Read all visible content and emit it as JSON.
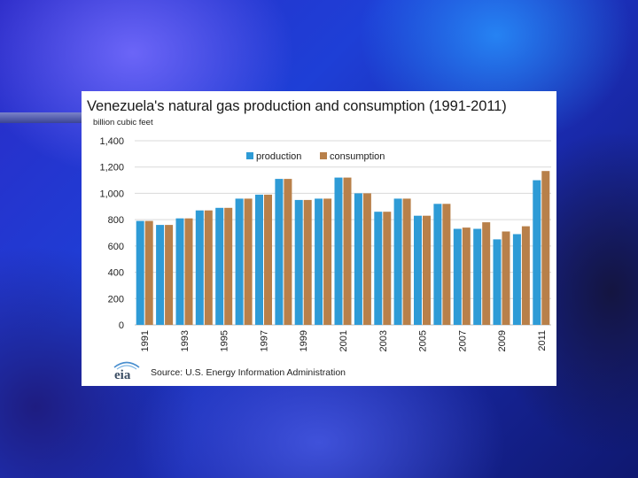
{
  "colors": {
    "production": "#2E9BD6",
    "consumption": "#B8804A",
    "grid": "#D9D9D9"
  },
  "source_text": "Source: U.S. Energy Information Administration",
  "logo_text": "eia",
  "chart_data": {
    "type": "bar",
    "title": "Venezuela's natural gas production and consumption (1991-2011)",
    "ylabel": "billion cubic feet",
    "xlabel": "",
    "ylim": [
      0,
      1400
    ],
    "yticks": [
      0,
      200,
      400,
      600,
      800,
      "1,000",
      "1,200",
      "1,400"
    ],
    "categories": [
      "1991",
      "1992",
      "1993",
      "1994",
      "1995",
      "1996",
      "1997",
      "1998",
      "1999",
      "2000",
      "2001",
      "2002",
      "2003",
      "2004",
      "2005",
      "2006",
      "2007",
      "2008",
      "2009",
      "2010",
      "2011"
    ],
    "tick_labels": [
      "1991",
      "",
      "1993",
      "",
      "1995",
      "",
      "1997",
      "",
      "1999",
      "",
      "2001",
      "",
      "2003",
      "",
      "2005",
      "",
      "2007",
      "",
      "2009",
      "",
      "2011"
    ],
    "legend_position": "top",
    "series": [
      {
        "name": "production",
        "values": [
          790,
          760,
          810,
          870,
          890,
          960,
          990,
          1110,
          950,
          960,
          1120,
          1000,
          860,
          960,
          830,
          920,
          730,
          730,
          650,
          690,
          1100
        ]
      },
      {
        "name": "consumption",
        "values": [
          790,
          760,
          810,
          870,
          890,
          960,
          990,
          1110,
          950,
          960,
          1120,
          1000,
          860,
          960,
          830,
          920,
          740,
          780,
          710,
          750,
          1170
        ]
      }
    ]
  }
}
